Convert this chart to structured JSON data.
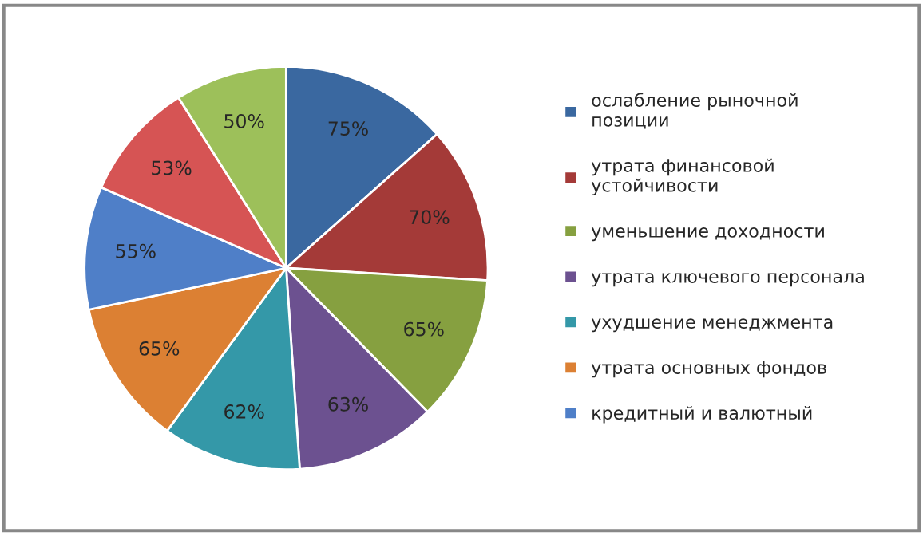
{
  "chart_data": {
    "type": "pie",
    "categories": [
      "ослабление рыночной позиции",
      "утрата финансовой устойчивости",
      "уменьшение доходности",
      "утрата ключевого персонала",
      "ухудшение менеджмента",
      "утрата основных фондов",
      "кредитный и валютный",
      null,
      null
    ],
    "values": [
      75,
      70,
      65,
      63,
      62,
      65,
      55,
      53,
      50
    ],
    "value_labels": [
      "75%",
      "70%",
      "65%",
      "63%",
      "62%",
      "65%",
      "55%",
      "53%",
      "50%"
    ],
    "colors": [
      "#3a68a0",
      "#a43a38",
      "#86a040",
      "#6c5190",
      "#3498a8",
      "#dc8033",
      "#4f7fc8",
      "#d65454",
      "#9dc05a"
    ],
    "legend": "right"
  }
}
